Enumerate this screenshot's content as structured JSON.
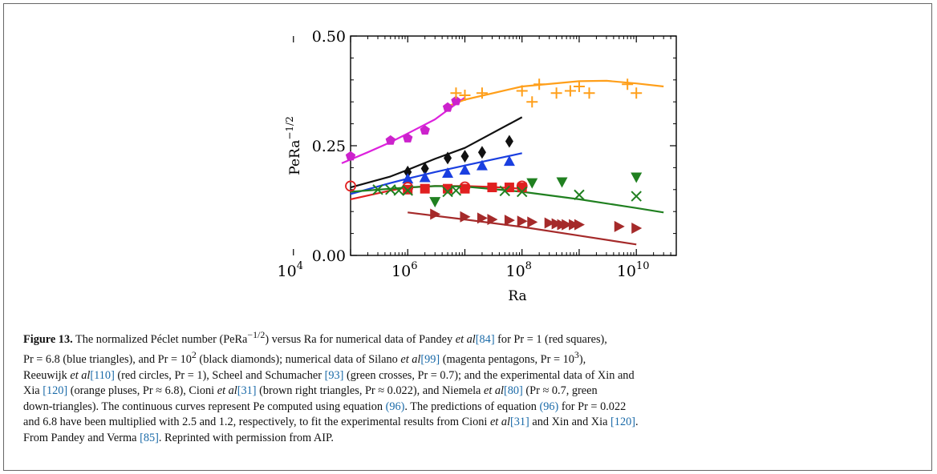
{
  "chart_data": {
    "type": "scatter",
    "x_scale": "log",
    "xlim": [
      100000,
      50000000000
    ],
    "ylim": [
      0.0,
      0.5
    ],
    "xlabel": "Ra",
    "ylabel": "PeRa",
    "ylabel_exponent": "−1/2",
    "y_ticks": [
      "0.00",
      "0.25",
      "0.50"
    ],
    "x_ticks": [
      {
        "value": 10000,
        "base": "10",
        "exp": "4"
      },
      {
        "value": 1000000,
        "base": "10",
        "exp": "6"
      },
      {
        "value": 100000000,
        "base": "10",
        "exp": "8"
      },
      {
        "value": 10000000000,
        "base": "10",
        "exp": "10"
      }
    ],
    "series": [
      {
        "color": "#cc22cc",
        "marker": "pentagon",
        "x": [
          100000,
          500000,
          1000000,
          2000000,
          5000000,
          7000000
        ],
        "y": [
          0.226,
          0.262,
          0.267,
          0.285,
          0.337,
          0.352
        ]
      },
      {
        "color": "#111111",
        "marker": "diamond",
        "x": [
          1000000,
          2000000,
          5000000,
          10000000,
          20000000,
          60000000
        ],
        "y": [
          0.19,
          0.198,
          0.222,
          0.226,
          0.235,
          0.26
        ]
      },
      {
        "color": "#1a3fe0",
        "marker": "triangle-up",
        "x": [
          1000000,
          2000000,
          5000000,
          10000000,
          20000000,
          60000000
        ],
        "y": [
          0.175,
          0.178,
          0.188,
          0.195,
          0.205,
          0.215
        ]
      },
      {
        "color": "#e02020",
        "marker": "square",
        "x": [
          1000000,
          2000000,
          5000000,
          10000000,
          30000000,
          60000000,
          100000000
        ],
        "y": [
          0.15,
          0.152,
          0.152,
          0.152,
          0.155,
          0.155,
          0.155
        ]
      },
      {
        "color": "#e02020",
        "marker": "circle-open",
        "x": [
          100000,
          1000000,
          10000000,
          100000000
        ],
        "y": [
          0.158,
          0.155,
          0.156,
          0.158
        ]
      },
      {
        "color": "#208020",
        "marker": "cross",
        "x": [
          300000,
          500000,
          700000,
          1000000,
          5000000,
          7000000,
          50000000,
          100000000,
          1000000000,
          10000000000
        ],
        "y": [
          0.15,
          0.15,
          0.148,
          0.148,
          0.145,
          0.148,
          0.147,
          0.145,
          0.138,
          0.135
        ]
      },
      {
        "color": "#208020",
        "marker": "triangle-down",
        "x": [
          3000000,
          150000000,
          500000000,
          10000000000
        ],
        "y": [
          0.122,
          0.165,
          0.167,
          0.178
        ]
      },
      {
        "color": "#ff9f1a",
        "marker": "plus",
        "x": [
          7000000,
          10000000,
          20000000,
          100000000,
          150000000,
          200000000,
          400000000,
          700000000,
          1000000000,
          1500000000,
          7000000000,
          10000000000
        ],
        "y": [
          0.37,
          0.365,
          0.37,
          0.375,
          0.35,
          0.39,
          0.37,
          0.375,
          0.385,
          0.37,
          0.39,
          0.37
        ]
      },
      {
        "color": "#a52a2a",
        "marker": "triangle-right",
        "x": [
          3000000,
          10000000,
          20000000,
          30000000,
          60000000,
          100000000,
          150000000,
          300000000,
          400000000,
          500000000,
          600000000,
          800000000,
          1000000000,
          5000000000,
          10000000000
        ],
        "y": [
          0.094,
          0.088,
          0.085,
          0.082,
          0.08,
          0.078,
          0.076,
          0.074,
          0.072,
          0.07,
          0.07,
          0.07,
          0.07,
          0.066,
          0.062
        ]
      }
    ],
    "curves": [
      {
        "color": "#dd22dd",
        "x": [
          70000,
          200000,
          500000,
          1000000,
          3000000,
          10000000
        ],
        "y": [
          0.21,
          0.235,
          0.258,
          0.278,
          0.31,
          0.36
        ]
      },
      {
        "color": "#111111",
        "x": [
          100000,
          500000,
          1000000,
          3000000,
          10000000,
          100000000
        ],
        "y": [
          0.155,
          0.18,
          0.195,
          0.22,
          0.245,
          0.315
        ]
      },
      {
        "color": "#1a3fe0",
        "x": [
          100000,
          500000,
          1000000,
          3000000,
          10000000,
          100000000
        ],
        "y": [
          0.14,
          0.165,
          0.175,
          0.19,
          0.205,
          0.233
        ]
      },
      {
        "color": "#e02020",
        "x": [
          100000,
          500000,
          1000000,
          3000000,
          10000000,
          30000000,
          100000000
        ],
        "y": [
          0.128,
          0.148,
          0.155,
          0.158,
          0.158,
          0.156,
          0.152
        ]
      },
      {
        "color": "#208020",
        "x": [
          100000,
          1000000,
          3000000,
          10000000,
          100000000,
          1000000000,
          10000000000,
          30000000000
        ],
        "y": [
          0.145,
          0.155,
          0.158,
          0.157,
          0.145,
          0.128,
          0.108,
          0.098
        ]
      },
      {
        "color": "#ff9f1a",
        "x": [
          5000000,
          10000000,
          100000000,
          1000000000,
          3000000000,
          10000000000,
          30000000000
        ],
        "y": [
          0.34,
          0.355,
          0.385,
          0.397,
          0.398,
          0.392,
          0.385
        ]
      },
      {
        "color": "#a52a2a",
        "x": [
          1000000,
          10000000,
          100000000,
          1000000000,
          10000000000
        ],
        "y": [
          0.098,
          0.082,
          0.065,
          0.045,
          0.025
        ]
      }
    ]
  },
  "caption": {
    "figure_label": "Figure 13.",
    "p1": " The normalized Péclet number (PeRa",
    "p1_exp": "−1/2",
    "p2": ") versus Ra for numerical data of Pandey ",
    "etal": "et al",
    "ref84": "[84]",
    "p3": " for Pr = 1 (red squares),",
    "p4": "Pr = 6.8 (blue triangles), and Pr = 10",
    "p4_exp": "2",
    "p5": " (black diamonds); numerical data of Silano ",
    "ref99": "[99]",
    "p6": " (magenta pentagons, Pr = 10",
    "p6_exp": "3",
    "p7": "),",
    "p8": "Reeuwijk ",
    "ref110": "[110]",
    "p9": " (red circles, Pr = 1), Scheel and Schumacher ",
    "ref93": "[93]",
    "p10": " (green crosses, Pr = 0.7); and the experimental data of Xin and",
    "p11": "Xia ",
    "ref120": "[120]",
    "p12": " (orange pluses, Pr ≈ 6.8), Cioni ",
    "ref31": "[31]",
    "p13": " (brown right triangles, Pr ≈ 0.022), and Niemela ",
    "ref80": "[80]",
    "p14": " (Pr ≈ 0.7, green",
    "p15": "down-triangles). The continuous curves represent Pe computed using equation ",
    "ref96": "(96)",
    "p16": ". The predictions of equation ",
    "p17": " for Pr = 0.022",
    "p18": "and 6.8 have been multiplied with 2.5 and 1.2, respectively, to fit the experimental results from Cioni ",
    "p19": " and Xin and Xia ",
    "p20": ".",
    "p21": "From Pandey and Verma ",
    "ref85": "[85]",
    "p22": ". Reprinted with permission from AIP."
  }
}
